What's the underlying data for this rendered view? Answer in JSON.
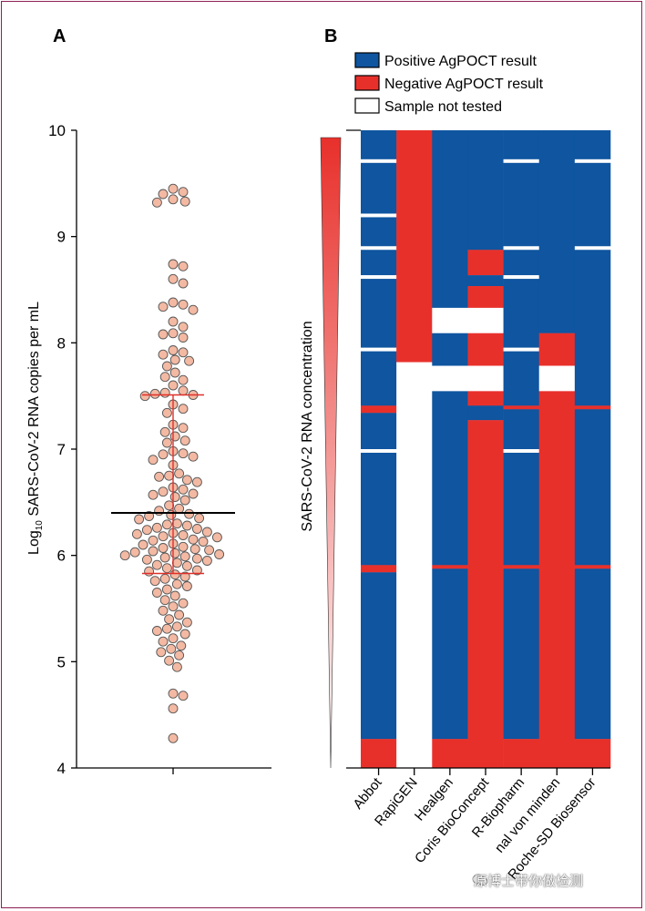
{
  "panel_a": {
    "label": "A"
  },
  "panel_b": {
    "label": "B"
  },
  "watermark": {
    "text": "原博士带你做检测"
  },
  "colors": {
    "dot_fill": "#f3b9a3",
    "dot_stroke": "#555555",
    "median_line": "#000000",
    "iqr_line": "#e0302a",
    "positive": "#0f55a0",
    "negative": "#e8302b",
    "not_tested": "#ffffff",
    "frame": "#8c1f53"
  },
  "chart_data": [
    {
      "type": "scatter",
      "panel": "A",
      "ylabel_prefix": "Log",
      "ylabel_sub": "10",
      "ylabel_rest": " SARS-CoV-2 RNA copies per mL",
      "ylim": [
        4,
        10
      ],
      "yticks": [
        "4",
        "5",
        "6",
        "7",
        "8",
        "9",
        "10"
      ],
      "median": 6.4,
      "iqr": [
        5.83,
        7.51
      ],
      "values": [
        9.45,
        9.42,
        9.4,
        9.35,
        9.33,
        9.32,
        8.74,
        8.72,
        8.6,
        8.56,
        8.38,
        8.36,
        8.34,
        8.31,
        8.2,
        8.15,
        8.09,
        8.08,
        8.05,
        7.93,
        7.91,
        7.89,
        7.84,
        7.83,
        7.78,
        7.72,
        7.68,
        7.65,
        7.6,
        7.55,
        7.53,
        7.52,
        7.51,
        7.5,
        7.42,
        7.38,
        7.34,
        7.23,
        7.2,
        7.16,
        7.12,
        7.08,
        7.06,
        6.98,
        6.96,
        6.95,
        6.93,
        6.9,
        6.85,
        6.77,
        6.75,
        6.74,
        6.71,
        6.69,
        6.64,
        6.62,
        6.6,
        6.58,
        6.57,
        6.55,
        6.52,
        6.47,
        6.44,
        6.42,
        6.39,
        6.38,
        6.37,
        6.35,
        6.34,
        6.3,
        6.29,
        6.28,
        6.26,
        6.25,
        6.24,
        6.22,
        6.21,
        6.2,
        6.19,
        6.18,
        6.17,
        6.15,
        6.14,
        6.13,
        6.11,
        6.1,
        6.08,
        6.07,
        6.06,
        6.05,
        6.04,
        6.03,
        6.02,
        6.01,
        6.0,
        5.99,
        5.98,
        5.97,
        5.96,
        5.95,
        5.93,
        5.91,
        5.9,
        5.88,
        5.86,
        5.85,
        5.82,
        5.8,
        5.78,
        5.76,
        5.73,
        5.71,
        5.68,
        5.65,
        5.62,
        5.58,
        5.55,
        5.52,
        5.48,
        5.44,
        5.4,
        5.37,
        5.33,
        5.31,
        5.29,
        5.26,
        5.22,
        5.19,
        5.15,
        5.12,
        5.09,
        5.06,
        5.01,
        4.95,
        4.7,
        4.68,
        4.56,
        4.28
      ]
    },
    {
      "type": "heatmap",
      "panel": "B",
      "ylabel": "SARS-CoV-2 RNA concentration",
      "columns": [
        "Abbot",
        "RapiGEN",
        "Healgen",
        "Coris BioConcept",
        "R-Biopharm",
        "nal von minden",
        "Roche-SD Biosensor"
      ],
      "legend": [
        {
          "key": "P",
          "label": "Positive AgPOCT result"
        },
        {
          "key": "N",
          "label": "Negative AgPOCT result"
        },
        {
          "key": "X",
          "label": "Sample not tested"
        }
      ],
      "matrix": [
        "PNPPPPP",
        "PNPPPPP",
        "PNPPPPP",
        "PNPPPPP",
        "PNPPPPP",
        "PNPPPPP",
        "PNPPPPP",
        "PNPPPPP",
        "XNPPXPX",
        "PNPPPPP",
        "PNPPPPP",
        "PNPPPPP",
        "PNPPPPP",
        "PNPPPPP",
        "PNPPPPP",
        "PNPPPPP",
        "PNPPPPP",
        "PNPPPPP",
        "PNPPPPP",
        "PNPPPPP",
        "PNPPPPP",
        "PNPPPPP",
        "PNPPPPP",
        "XNPPPPP",
        "PNPPPPP",
        "PNPPPPP",
        "PNPPPPP",
        "PNPPPPP",
        "PNPPPPP",
        "PNPPPPP",
        "PNPPPPP",
        "PNPPPPP",
        "XNPPXPX",
        "PNPNPPP",
        "PNPNPPP",
        "PNPNPPP",
        "PNPNPPP",
        "PNPNPPP",
        "PNPNPPP",
        "PNPNPPP",
        "XNPPXPP",
        "PNPPPPP",
        "PNPPPPP",
        "PNPNPPP",
        "PNPNPPP",
        "PNPNPPP",
        "PNPNPPP",
        "PNPNPPP",
        "PNPNPPP",
        "PNXXPPP",
        "PNXXPPP",
        "PNXXPPP",
        "PNXXPPP",
        "PNXXPPP",
        "PNXXPPP",
        "PNXXPPP",
        "PNPNPNP",
        "PNPNPNP",
        "PNPNPNP",
        "PNPNPNP",
        "XNPNXNP",
        "PNPNPNP",
        "PNPNPNP",
        "PNPNPNP",
        "PXPNPNP",
        "PXXXPXP",
        "PXXXPXP",
        "PXXXPXP",
        "PXXXPXP",
        "PXXXPXP",
        "PXXXPXP",
        "PXXXPXP",
        "PXPNPNP",
        "PXPNPNP",
        "PXPNPNP",
        "PXPNPNP",
        "NXPPNNN",
        "NXPPPNP",
        "PXPPPNP",
        "PXPPPNP",
        "PXPNPNP",
        "PXPNPNP",
        "PXPNPNP",
        "PXPNPNP",
        "PXPNPNP",
        "PXPNPNP",
        "PXPNPNP",
        "PXPNPNP",
        "XXPNXNP",
        "PXPNPNP",
        "PXPNPNP",
        "PXPNPNP",
        "PXPNPNP",
        "PXPNPNP",
        "PXPNPNP",
        "PXPNPNP",
        "PXPNPNP",
        "PXPNPNP",
        "PXPNPNP",
        "PXPNPNP",
        "PXPNPNP",
        "PXPNPNP",
        "PXPNPNP",
        "PXPNPNP",
        "PXPNPNP",
        "PXPNPNP",
        "PXPNPNP",
        "PXPNPNP",
        "PXPNPNP",
        "PXPNPNP",
        "PXPNPNP",
        "PXPNPNP",
        "PXPNPNP",
        "PXPNPNP",
        "PXPNPNP",
        "PXPNPNP",
        "PXPNPNP",
        "PXPNPNP",
        "PXPNPNP",
        "PXPNPNP",
        "NXNNNNN",
        "NXPNPNP",
        "PXPNPNP",
        "PXPNPNP",
        "PXPNPNP",
        "PXPNPNP",
        "PXPNPNP",
        "PXPNPNP",
        "PXPNPNP",
        "PXPNPNP",
        "PXPNPNP",
        "PXPNPNP",
        "PXPNPNP",
        "PXPNPNP",
        "PXPNPNP",
        "PXPNPNP",
        "PXPNPNP",
        "PXPNPNP",
        "PXPNPNP",
        "PXPNPNP",
        "PXPNPNP",
        "PXPNPNP",
        "PXPNPNP",
        "PXPNPNP",
        "PXPNPNP",
        "PXPNPNP",
        "PXPNPNP",
        "PXPNPNP",
        "PXPNPNP",
        "PXPNPNP",
        "PXPNPNP",
        "PXPNPNP",
        "PXPNPNP",
        "PXPNPNP",
        "PXPNPNP",
        "PXPNPNP",
        "PXPNPNP",
        "PXPNPNP",
        "PXPNPNP",
        "PXPNPNP",
        "PXPNPNP",
        "PXPNPNP",
        "PXPNPNP",
        "PXPNPNP",
        "PXPNPNP",
        "PXPNPNP",
        "PXPNPNP",
        "PXPNPNP",
        "NXNNNNN",
        "NXNNNNN",
        "NXNNNNN",
        "NXNNNNN",
        "NXNNNNN",
        "NXNNNNN",
        "NXNNNNN",
        "NXNNNNN"
      ]
    }
  ]
}
